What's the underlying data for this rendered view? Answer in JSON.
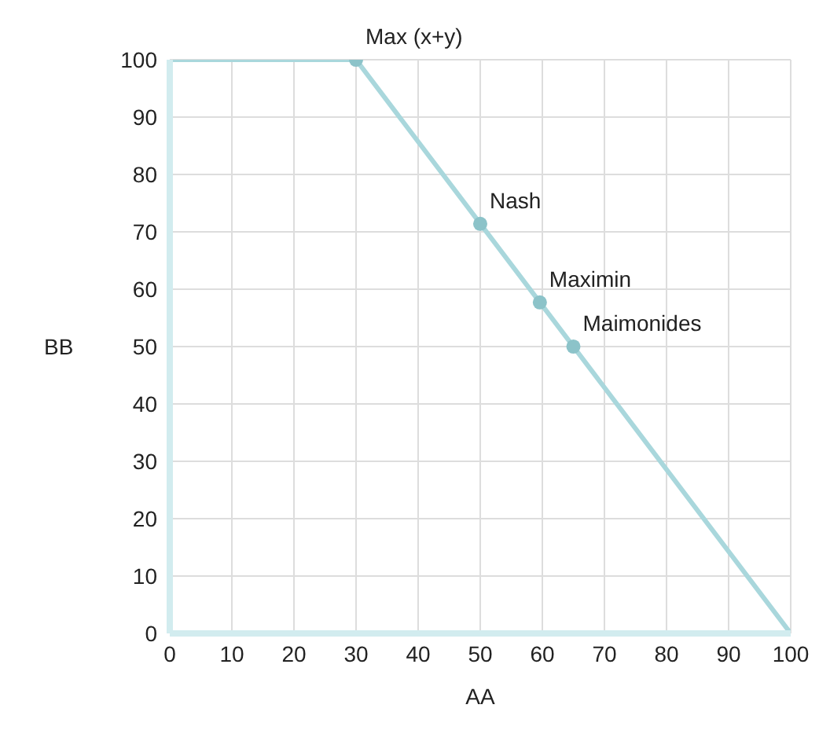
{
  "chart_data": {
    "type": "line",
    "xlabel": "AA",
    "ylabel": "BB",
    "xlim": [
      0,
      100
    ],
    "xticks": [
      0,
      10,
      20,
      30,
      40,
      50,
      60,
      70,
      80,
      90,
      100
    ],
    "ylim": [
      0,
      100
    ],
    "yticks": [
      0,
      10,
      20,
      30,
      40,
      50,
      60,
      70,
      80,
      90,
      100
    ],
    "grid": true,
    "series": [
      {
        "color": "#a9d7dc",
        "x": [
          0,
          30,
          100
        ],
        "values": [
          100,
          100,
          0
        ],
        "marker": "none"
      },
      {
        "type": "scatter",
        "color": "#8cc3c9",
        "x": [
          30,
          50,
          59.6,
          65
        ],
        "values": [
          100,
          71.4,
          57.7,
          50
        ],
        "marker": "circle"
      }
    ],
    "annotations": [
      {
        "text": "Max (x+y)",
        "x": 30,
        "y": 100
      },
      {
        "text": "Nash",
        "x": 50,
        "y": 71.4
      },
      {
        "text": "Maximin",
        "x": 59.6,
        "y": 57.7
      },
      {
        "text": "Maimonides",
        "x": 65,
        "y": 50
      }
    ]
  }
}
